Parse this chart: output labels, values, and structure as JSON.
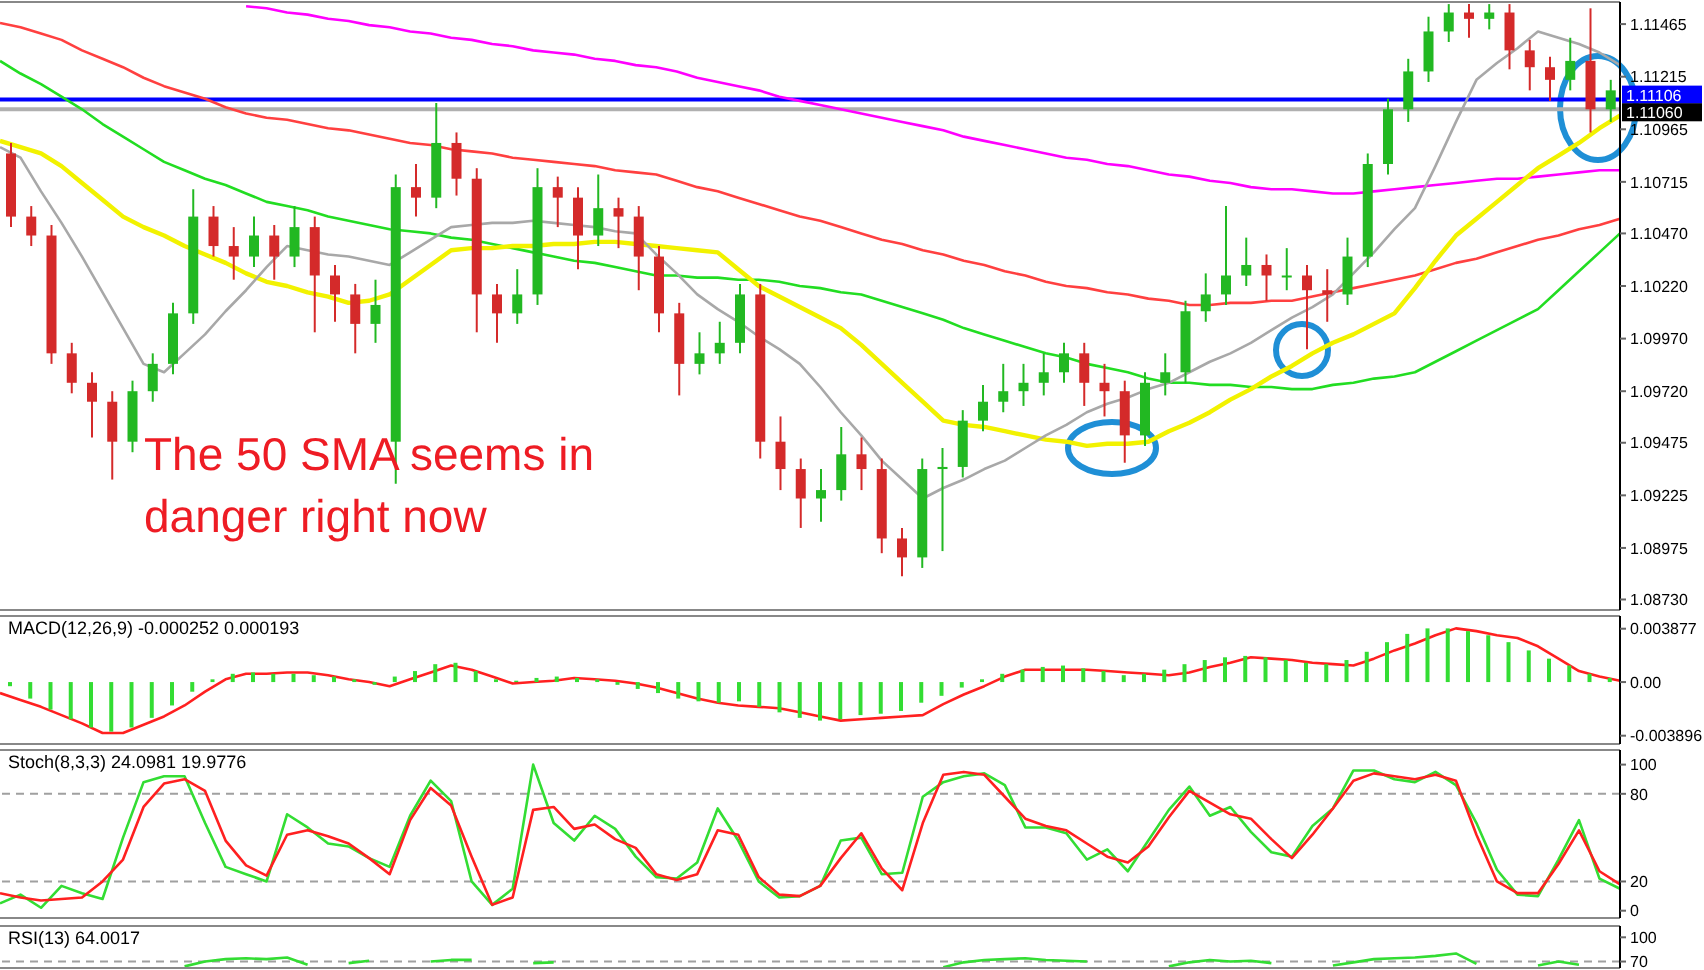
{
  "chart_data": [
    {
      "type": "candlestick",
      "categories": [
        null,
        null,
        null,
        null,
        null,
        null,
        null,
        null,
        null,
        null,
        null,
        null,
        null,
        null,
        null,
        null,
        null,
        null,
        null,
        null,
        null,
        null,
        null,
        null,
        null,
        null,
        null,
        null,
        null,
        null,
        null,
        null,
        null,
        null,
        null,
        null,
        null,
        null,
        null,
        null,
        null,
        null,
        null,
        null,
        null,
        null,
        null,
        null,
        null,
        null,
        null,
        null,
        null,
        null,
        null,
        null,
        null,
        null,
        null,
        null,
        null,
        null,
        null,
        null,
        null,
        null,
        null,
        null,
        null,
        null,
        null,
        null,
        null,
        null,
        null,
        null,
        null,
        null,
        null,
        null
      ],
      "ohlc": [
        [
          1.1085,
          1.109,
          1.105,
          1.1055
        ],
        [
          1.1055,
          1.106,
          1.1041,
          1.1046
        ],
        [
          1.1046,
          1.1051,
          1.0985,
          1.099
        ],
        [
          1.099,
          1.0995,
          1.0971,
          1.0976
        ],
        [
          1.0976,
          1.0981,
          1.095,
          1.0967
        ],
        [
          1.0967,
          1.0972,
          1.093,
          1.0948
        ],
        [
          1.0948,
          1.0977,
          1.0943,
          1.0972
        ],
        [
          1.0972,
          1.099,
          1.0967,
          1.0985
        ],
        [
          1.0985,
          1.1014,
          1.098,
          1.1009
        ],
        [
          1.1009,
          1.1068,
          1.1004,
          1.1055
        ],
        [
          1.1055,
          1.106,
          1.1036,
          1.1041
        ],
        [
          1.1041,
          1.105,
          1.1025,
          1.1036
        ],
        [
          1.1036,
          1.1055,
          1.1031,
          1.1046
        ],
        [
          1.1046,
          1.1051,
          1.1025,
          1.1036
        ],
        [
          1.1036,
          1.106,
          1.1031,
          1.105
        ],
        [
          1.105,
          1.1055,
          1.1,
          1.1027
        ],
        [
          1.1027,
          1.1032,
          1.1005,
          1.1018
        ],
        [
          1.1018,
          1.1023,
          1.099,
          1.1004
        ],
        [
          1.1004,
          1.1025,
          1.0995,
          1.1013
        ],
        [
          1.0948,
          1.1075,
          1.0928,
          1.1069
        ],
        [
          1.1069,
          1.108,
          1.1055,
          1.1064
        ],
        [
          1.1064,
          1.1109,
          1.1059,
          1.109
        ],
        [
          1.109,
          1.1095,
          1.1065,
          1.1073
        ],
        [
          1.1073,
          1.1078,
          1.1,
          1.1018
        ],
        [
          1.1018,
          1.1023,
          1.0995,
          1.1009
        ],
        [
          1.1009,
          1.103,
          1.1004,
          1.1018
        ],
        [
          1.1018,
          1.1078,
          1.1013,
          1.1069
        ],
        [
          1.1069,
          1.1074,
          1.105,
          1.1064
        ],
        [
          1.1064,
          1.1069,
          1.103,
          1.1046
        ],
        [
          1.1046,
          1.1075,
          1.1041,
          1.1059
        ],
        [
          1.1059,
          1.1064,
          1.104,
          1.1055
        ],
        [
          1.1055,
          1.106,
          1.102,
          1.1036
        ],
        [
          1.1036,
          1.1041,
          1.1,
          1.1009
        ],
        [
          1.1009,
          1.1014,
          1.097,
          1.0985
        ],
        [
          1.0985,
          1.1,
          1.098,
          1.099
        ],
        [
          1.099,
          1.1005,
          1.0985,
          1.0995
        ],
        [
          1.0995,
          1.1023,
          1.099,
          1.1018
        ],
        [
          1.1018,
          1.1023,
          1.094,
          1.0948
        ],
        [
          1.0948,
          1.096,
          1.0925,
          1.0935
        ],
        [
          1.0935,
          1.094,
          1.0907,
          1.0921
        ],
        [
          1.0921,
          1.0935,
          1.091,
          1.0925
        ],
        [
          1.0925,
          1.0955,
          1.092,
          1.0942
        ],
        [
          1.0942,
          1.095,
          1.0925,
          1.0935
        ],
        [
          1.0935,
          1.094,
          1.0895,
          1.0902
        ],
        [
          1.0902,
          1.0907,
          1.0884,
          1.0893
        ],
        [
          1.0893,
          1.094,
          1.0888,
          1.0935
        ],
        [
          1.0935,
          1.0945,
          1.0896,
          1.0936
        ],
        [
          1.0936,
          1.0963,
          1.0931,
          1.0958
        ],
        [
          1.0958,
          1.0975,
          1.0953,
          1.0967
        ],
        [
          1.0967,
          1.0985,
          1.0962,
          1.0972
        ],
        [
          1.0972,
          1.0985,
          1.0965,
          1.0976
        ],
        [
          1.0976,
          1.099,
          1.097,
          1.0981
        ],
        [
          1.0981,
          1.0995,
          1.0976,
          1.099
        ],
        [
          1.099,
          1.0995,
          1.0965,
          1.0976
        ],
        [
          1.0976,
          1.0985,
          1.096,
          1.0972
        ],
        [
          1.0972,
          1.0977,
          1.0938,
          1.0951
        ],
        [
          1.0951,
          1.0981,
          1.0946,
          1.0976
        ],
        [
          1.0976,
          1.099,
          1.097,
          1.0981
        ],
        [
          1.0981,
          1.1015,
          1.0976,
          1.101
        ],
        [
          1.101,
          1.1028,
          1.1005,
          1.1018
        ],
        [
          1.1018,
          1.106,
          1.1013,
          1.1027
        ],
        [
          1.1027,
          1.1045,
          1.1022,
          1.1032
        ],
        [
          1.1032,
          1.1037,
          1.1015,
          1.1027
        ],
        [
          1.1027,
          1.104,
          1.102,
          1.1027
        ],
        [
          1.1027,
          1.1032,
          1.0992,
          1.102
        ],
        [
          1.102,
          1.103,
          1.1005,
          1.1018
        ],
        [
          1.1018,
          1.1045,
          1.1013,
          1.1036
        ],
        [
          1.1036,
          1.1085,
          1.1031,
          1.108
        ],
        [
          1.108,
          1.1111,
          1.1075,
          1.1106
        ],
        [
          1.1106,
          1.113,
          1.11,
          1.1124
        ],
        [
          1.1124,
          1.115,
          1.1119,
          1.1143
        ],
        [
          1.1143,
          1.1156,
          1.1138,
          1.1152
        ],
        [
          1.1152,
          1.1156,
          1.114,
          1.1149
        ],
        [
          1.1149,
          1.1156,
          1.1144,
          1.1152
        ],
        [
          1.1152,
          1.1156,
          1.1125,
          1.1134
        ],
        [
          1.1134,
          1.1139,
          1.1115,
          1.1126
        ],
        [
          1.1126,
          1.1131,
          1.111,
          1.112
        ],
        [
          1.112,
          1.114,
          1.1115,
          1.1129
        ],
        [
          1.1129,
          1.1154,
          1.1095,
          1.1106
        ],
        [
          1.1106,
          1.112,
          1.11,
          1.1115
        ]
      ],
      "colors": [
        "#d42a2a",
        "#d42a2a",
        "#d42a2a",
        "#d42a2a",
        "#d42a2a",
        "#d42a2a",
        "#22b822",
        "#22b822",
        "#22b822",
        "#22b822",
        "#d42a2a",
        "#d42a2a",
        "#22b822",
        "#d42a2a",
        "#22b822",
        "#d42a2a",
        "#d42a2a",
        "#d42a2a",
        "#22b822",
        "#22b822",
        "#d42a2a",
        "#22b822",
        "#d42a2a",
        "#d42a2a",
        "#d42a2a",
        "#22b822",
        "#22b822",
        "#d42a2a",
        "#d42a2a",
        "#22b822",
        "#d42a2a",
        "#d42a2a",
        "#d42a2a",
        "#d42a2a",
        "#22b822",
        "#22b822",
        "#22b822",
        "#d42a2a",
        "#d42a2a",
        "#d42a2a",
        "#22b822",
        "#22b822",
        "#d42a2a",
        "#d42a2a",
        "#d42a2a",
        "#22b822",
        "#22b822",
        "#22b822",
        "#22b822",
        "#22b822",
        "#22b822",
        "#22b822",
        "#22b822",
        "#d42a2a",
        "#d42a2a",
        "#d42a2a",
        "#22b822",
        "#22b822",
        "#22b822",
        "#22b822",
        "#22b822",
        "#22b822",
        "#d42a2a",
        "#22b822",
        "#d42a2a",
        "#d42a2a",
        "#22b822",
        "#22b822",
        "#22b822",
        "#22b822",
        "#22b822",
        "#22b822",
        "#d42a2a",
        "#22b822",
        "#d42a2a",
        "#d42a2a",
        "#d42a2a",
        "#22b822",
        "#d42a2a",
        "#22b822"
      ],
      "ylim": [
        1.0868,
        1.1157
      ],
      "yticks": [
        1.11465,
        1.11215,
        1.10965,
        1.10715,
        {
          "value": 1.1047,
          "label": "1.10470"
        },
        {
          "value": 1.1022,
          "label": "1.10220"
        },
        {
          "value": 1.0997,
          "label": "1.09970"
        },
        {
          "value": 1.0972,
          "label": "1.09720"
        },
        1.09475,
        1.09225,
        1.08975,
        {
          "value": 1.0873,
          "label": "1.08730"
        }
      ],
      "annotations": [
        "The 50 SMA seems in danger right now"
      ],
      "tick_labels": "y"
    },
    {
      "type": "line",
      "categories": [
        null,
        null,
        null,
        null,
        null,
        null,
        null,
        null,
        null,
        null,
        null,
        null,
        null,
        null,
        null,
        null,
        null,
        null,
        null,
        null,
        null,
        null,
        null,
        null,
        null,
        null,
        null,
        null,
        null,
        null,
        null,
        null,
        null,
        null,
        null,
        null,
        null,
        null,
        null,
        null,
        null,
        null,
        null,
        null,
        null,
        null,
        null,
        null,
        null,
        null,
        null,
        null,
        null,
        null,
        null,
        null,
        null,
        null,
        null,
        null,
        null,
        null,
        null,
        null,
        null,
        null,
        null,
        null,
        null,
        null,
        null,
        null,
        null,
        null,
        null,
        null,
        null,
        null,
        null,
        null
      ],
      "series": [
        {
          "color": "#ff00ff",
          "values": [
            null,
            null,
            null,
            null,
            null,
            null,
            null,
            null,
            null,
            null,
            null,
            null,
            1.1155,
            1.1154,
            1.1152,
            1.1151,
            1.1149,
            1.1148,
            1.1146,
            1.1145,
            1.1143,
            1.1142,
            1.114,
            1.1139,
            1.1137,
            1.1136,
            1.1134,
            1.1133,
            1.1132,
            1.113,
            1.1129,
            1.1127,
            1.1126,
            1.1124,
            1.1121,
            1.1119,
            1.1117,
            1.1115,
            1.1112,
            1.111,
            1.1108,
            1.1106,
            1.1104,
            1.1102,
            1.11,
            1.1098,
            1.1096,
            1.1093,
            1.1091,
            1.1089,
            1.1087,
            1.1085,
            1.1083,
            1.1082,
            1.108,
            1.1079,
            1.1077,
            1.1075,
            1.1074,
            1.1072,
            1.1071,
            1.1069,
            1.1068,
            1.1068,
            1.1067,
            1.1066,
            1.1066,
            1.1067,
            1.1068,
            1.1069,
            1.107,
            1.1071,
            1.1072,
            1.1073,
            1.1073,
            1.1074,
            1.1075,
            1.1076,
            1.1077,
            1.1077
          ]
        },
        {
          "color": "#ff4040",
          "values": [
            1.1147,
            1.1145,
            1.1142,
            1.1139,
            1.1134,
            1.113,
            1.1126,
            1.1121,
            1.1117,
            1.1114,
            1.1111,
            1.1107,
            1.1104,
            1.1102,
            1.1101,
            1.1099,
            1.1097,
            1.1096,
            1.1094,
            1.1092,
            1.109,
            1.1089,
            1.1087,
            1.1086,
            1.1085,
            1.1083,
            1.1082,
            1.1081,
            1.108,
            1.1079,
            1.1077,
            1.1076,
            1.1075,
            1.1072,
            1.1069,
            1.1067,
            1.1064,
            1.1061,
            1.1058,
            1.1055,
            1.1053,
            1.105,
            1.1047,
            1.1044,
            1.1042,
            1.1039,
            1.1037,
            1.1034,
            1.1032,
            1.1029,
            1.1027,
            1.1024,
            1.1022,
            1.1021,
            1.1019,
            1.1018,
            1.1016,
            1.1015,
            1.1013,
            1.1013,
            1.1014,
            1.1014,
            1.1015,
            1.1015,
            1.1017,
            1.1019,
            1.1021,
            1.1023,
            1.1025,
            1.1027,
            1.103,
            1.1033,
            1.1035,
            1.1038,
            1.1041,
            1.1044,
            1.1046,
            1.1049,
            1.1051,
            1.1054
          ]
        },
        {
          "color": "#22dd22",
          "values": [
            1.1129,
            1.1123,
            1.1118,
            1.1112,
            1.1106,
            1.1099,
            1.1093,
            1.1087,
            1.1081,
            1.1077,
            1.1073,
            1.107,
            1.1066,
            1.1062,
            1.106,
            1.1058,
            1.1055,
            1.1053,
            1.1051,
            1.1049,
            1.1048,
            1.1047,
            1.1045,
            1.1044,
            1.1042,
            1.104,
            1.1038,
            1.1036,
            1.1034,
            1.1033,
            1.1031,
            1.1029,
            1.1027,
            1.1027,
            1.1026,
            1.1026,
            1.1025,
            1.1025,
            1.1024,
            1.1022,
            1.1021,
            1.1019,
            1.1018,
            1.1015,
            1.1012,
            1.1009,
            1.1006,
            1.1002,
            1.0999,
            1.0996,
            1.0993,
            1.099,
            1.0988,
            1.0985,
            1.0983,
            1.0981,
            1.0978,
            1.0976,
            1.0976,
            1.0975,
            1.0975,
            1.0974,
            1.0974,
            1.0973,
            1.0973,
            1.0975,
            1.0976,
            1.0978,
            1.0979,
            1.0981,
            1.0986,
            1.0991,
            1.0996,
            1.1001,
            1.1006,
            1.1011,
            1.102,
            1.1029,
            1.1038,
            1.1047
          ]
        },
        {
          "color": "#f2f200",
          "values": [
            1.1091,
            1.1088,
            1.1085,
            1.1079,
            1.1071,
            1.1063,
            1.1055,
            1.105,
            1.1046,
            1.1041,
            1.1037,
            1.1033,
            1.1028,
            1.1024,
            1.1022,
            1.1019,
            1.1017,
            1.1014,
            1.1015,
            1.1018,
            1.1025,
            1.1032,
            1.1039,
            1.104,
            1.104,
            1.1041,
            1.1041,
            1.1042,
            1.1042,
            1.1043,
            1.1043,
            1.1042,
            1.1041,
            1.104,
            1.1039,
            1.1038,
            1.103,
            1.1022,
            1.1017,
            1.1012,
            1.1007,
            1.1002,
            1.0994,
            1.0985,
            1.0976,
            1.0967,
            1.0958,
            1.0956,
            1.0955,
            1.0953,
            1.0951,
            1.0949,
            1.0948,
            1.0946,
            1.0947,
            1.0947,
            1.0948,
            1.0953,
            1.0957,
            1.0962,
            1.0968,
            1.0973,
            1.0979,
            1.0984,
            1.099,
            1.0995,
            1.0999,
            1.1004,
            1.1009,
            1.1021,
            1.1034,
            1.1046,
            1.1054,
            1.1062,
            1.107,
            1.1078,
            1.1084,
            1.109,
            1.1097,
            1.1103
          ]
        },
        {
          "color": "#a8a8a8",
          "values": [
            1.1088,
            1.1083,
            1.1067,
            1.1052,
            1.1036,
            1.1019,
            1.1002,
            1.0985,
            1.0981,
            1.099,
            1.0999,
            1.101,
            1.102,
            1.1031,
            1.1041,
            1.1039,
            1.1037,
            1.1036,
            1.1034,
            1.1032,
            1.1038,
            1.1044,
            1.105,
            1.1051,
            1.1052,
            1.1052,
            1.1053,
            1.1052,
            1.1051,
            1.105,
            1.1048,
            1.1047,
            1.1037,
            1.1028,
            1.1018,
            1.1011,
            1.1005,
            1.0998,
            1.0992,
            1.0985,
            1.0974,
            1.0962,
            1.0951,
            1.0939,
            1.093,
            1.0921,
            1.0926,
            1.093,
            1.0935,
            1.0939,
            1.0945,
            1.0951,
            1.0956,
            1.0962,
            1.0966,
            1.0969,
            1.0973,
            1.0976,
            1.0981,
            1.0986,
            1.099,
            1.0995,
            1.1001,
            1.1007,
            1.1012,
            1.1018,
            1.1028,
            1.1038,
            1.1049,
            1.1059,
            1.1079,
            1.11,
            1.112,
            1.1128,
            1.1135,
            1.1143,
            1.114,
            1.1137,
            1.1133,
            1.1127
          ]
        }
      ],
      "ylim": [
        1.0868,
        1.1157
      ],
      "ref_lines": [
        {
          "axis": "y",
          "value": 1.11106,
          "label": "1.11106",
          "color": "#0000ff"
        },
        {
          "axis": "y",
          "value": 1.1106,
          "label": "1.11060",
          "color": "#b0b0b0"
        }
      ],
      "tick_labels": false
    },
    {
      "type": "bar",
      "title": "MACD(12,26,9) -0.000252 0.000193",
      "categories": [
        null,
        null,
        null,
        null,
        null,
        null,
        null,
        null,
        null,
        null,
        null,
        null,
        null,
        null,
        null,
        null,
        null,
        null,
        null,
        null,
        null,
        null,
        null,
        null,
        null,
        null,
        null,
        null,
        null,
        null,
        null,
        null,
        null,
        null,
        null,
        null,
        null,
        null,
        null,
        null,
        null,
        null,
        null,
        null,
        null,
        null,
        null,
        null,
        null,
        null,
        null,
        null,
        null,
        null,
        null,
        null,
        null,
        null,
        null,
        null,
        null,
        null,
        null,
        null,
        null,
        null,
        null,
        null,
        null,
        null,
        null,
        null,
        null,
        null,
        null,
        null,
        null,
        null,
        null,
        null
      ],
      "series": [
        {
          "color": "#33dd33",
          "values": [
            -0.0003,
            -0.0012,
            -0.002,
            -0.0027,
            -0.0033,
            -0.0036,
            -0.0033,
            -0.0026,
            -0.0017,
            -0.0007,
            0.0002,
            0.0006,
            0.0007,
            0.0006,
            0.0006,
            0.0005,
            0.0004,
            0.0002,
            -0.0002,
            0.0004,
            0.0008,
            0.0013,
            0.0014,
            0.0008,
            0.0002,
            0.0001,
            0.0003,
            0.0004,
            0.0003,
            0.0002,
            -0.0002,
            -0.0005,
            -0.0008,
            -0.0012,
            -0.0014,
            -0.0015,
            -0.0014,
            -0.0018,
            -0.0022,
            -0.0026,
            -0.0028,
            -0.0027,
            -0.0024,
            -0.0023,
            -0.0021,
            -0.0015,
            -0.001,
            -0.0004,
            0.0002,
            0.0006,
            0.0009,
            0.0011,
            0.0012,
            0.001,
            0.0008,
            0.0005,
            0.0006,
            0.0009,
            0.0013,
            0.0016,
            0.0018,
            0.0019,
            0.0018,
            0.0016,
            0.0014,
            0.0013,
            0.0016,
            0.0022,
            0.0029,
            0.0035,
            0.0039,
            0.0039,
            0.0037,
            0.0034,
            0.0029,
            0.0023,
            0.0017,
            0.0012,
            0.0006,
            0.0003
          ]
        }
      ],
      "ylim": [
        -0.0045,
        0.0048
      ],
      "yticks": [
        0.003877,
        {
          "value": 0,
          "label": "0.00"
        },
        -0.003896
      ],
      "tick_labels": "y"
    },
    {
      "type": "line",
      "categories": [
        null,
        null,
        null,
        null,
        null,
        null,
        null,
        null,
        null,
        null,
        null,
        null,
        null,
        null,
        null,
        null,
        null,
        null,
        null,
        null,
        null,
        null,
        null,
        null,
        null,
        null,
        null,
        null,
        null,
        null,
        null,
        null,
        null,
        null,
        null,
        null,
        null,
        null,
        null,
        null,
        null,
        null,
        null,
        null,
        null,
        null,
        null,
        null,
        null,
        null,
        null,
        null,
        null,
        null,
        null,
        null,
        null,
        null,
        null,
        null,
        null,
        null,
        null,
        null,
        null,
        null,
        null,
        null,
        null,
        null,
        null,
        null,
        null,
        null,
        null,
        null,
        null,
        null,
        null,
        null
      ],
      "series": [
        {
          "color": "#ff2020",
          "values": [
            -0.0008,
            -0.0013,
            -0.0018,
            -0.0024,
            -0.003,
            -0.0037,
            -0.0037,
            -0.0031,
            -0.0025,
            -0.0017,
            -0.0007,
            0.0002,
            0.0006,
            0.0006,
            0.0007,
            0.0007,
            0.0005,
            0.0002,
            0.0,
            -0.0003,
            0.0002,
            0.0007,
            0.0012,
            0.0009,
            0.0004,
            -0.0001,
            0.0,
            0.0001,
            0.0003,
            0.0002,
            0.0001,
            -0.0001,
            -0.0004,
            -0.0008,
            -0.0012,
            -0.0015,
            -0.0017,
            -0.0018,
            -0.0019,
            -0.0022,
            -0.0025,
            -0.0028,
            -0.0027,
            -0.0026,
            -0.0025,
            -0.0024,
            -0.0016,
            -0.0009,
            -0.0003,
            0.0004,
            0.0009,
            0.0009,
            0.0009,
            0.0009,
            0.0008,
            0.0007,
            0.0006,
            0.0005,
            0.0007,
            0.0011,
            0.0014,
            0.0018,
            0.0017,
            0.0016,
            0.0014,
            0.0013,
            0.0012,
            0.0017,
            0.0023,
            0.0028,
            0.0034,
            0.0039,
            0.0037,
            0.0034,
            0.0032,
            0.0026,
            0.0017,
            0.0008,
            0.0004,
            0.0001
          ]
        }
      ],
      "ylim": [
        -0.0045,
        0.0048
      ],
      "tick_labels": false
    },
    {
      "type": "line",
      "title": "Stoch(8,3,3) 24.0981 19.9776",
      "categories": [
        null,
        null,
        null,
        null,
        null,
        null,
        null,
        null,
        null,
        null,
        null,
        null,
        null,
        null,
        null,
        null,
        null,
        null,
        null,
        null,
        null,
        null,
        null,
        null,
        null,
        null,
        null,
        null,
        null,
        null,
        null,
        null,
        null,
        null,
        null,
        null,
        null,
        null,
        null,
        null,
        null,
        null,
        null,
        null,
        null,
        null,
        null,
        null,
        null,
        null,
        null,
        null,
        null,
        null,
        null,
        null,
        null,
        null,
        null,
        null,
        null,
        null,
        null,
        null,
        null,
        null,
        null,
        null,
        null,
        null,
        null,
        null,
        null,
        null,
        null,
        null,
        null,
        null,
        null,
        null
      ],
      "series": [
        {
          "color": "#33dd33",
          "values": [
            5,
            11,
            2,
            17,
            12,
            8,
            50,
            88,
            92,
            92,
            60,
            30,
            25,
            20,
            66,
            57,
            46,
            44,
            36,
            30,
            65,
            89,
            75,
            20,
            4,
            15,
            100,
            60,
            48,
            65,
            56,
            37,
            23,
            22,
            33,
            70,
            48,
            20,
            9,
            10,
            17,
            48,
            50,
            25,
            26,
            78,
            88,
            92,
            94,
            86,
            57,
            57,
            53,
            35,
            42,
            27,
            48,
            69,
            85,
            65,
            71,
            54,
            40,
            37,
            58,
            70,
            96,
            96,
            90,
            88,
            95,
            86,
            60,
            28,
            11,
            10,
            35,
            62,
            22,
            15
          ]
        },
        {
          "color": "#ff2020",
          "values": [
            12,
            9,
            7,
            8,
            9,
            20,
            35,
            71,
            87,
            90,
            82,
            48,
            31,
            24,
            52,
            55,
            51,
            46,
            36,
            25,
            62,
            84,
            72,
            37,
            4,
            9,
            69,
            71,
            56,
            59,
            49,
            43,
            25,
            21,
            25,
            55,
            52,
            23,
            11,
            10,
            17,
            36,
            53,
            29,
            14,
            60,
            93,
            95,
            93,
            78,
            63,
            58,
            55,
            46,
            37,
            33,
            44,
            64,
            82,
            74,
            66,
            63,
            49,
            36,
            52,
            70,
            89,
            94,
            92,
            90,
            93,
            89,
            52,
            20,
            12,
            12,
            32,
            55,
            27,
            18
          ]
        }
      ],
      "ylim": [
        -5,
        110
      ],
      "yticks": [
        100,
        80,
        20,
        0
      ],
      "tick_labels": "y",
      "ref_lines": [
        {
          "axis": "y",
          "value": 80,
          "color": "#a0a0a0",
          "line_style": "dashed"
        },
        {
          "axis": "y",
          "value": 20,
          "color": "#a0a0a0",
          "line_style": "dashed"
        }
      ]
    },
    {
      "type": "line",
      "title": "RSI(13) 64.0017",
      "categories": [
        null,
        null,
        null,
        null,
        null,
        null,
        null,
        null,
        null,
        null,
        null,
        null,
        null,
        null,
        null,
        null,
        null,
        null,
        null,
        null,
        null,
        null,
        null,
        null,
        null,
        null,
        null,
        null,
        null,
        null,
        null,
        null,
        null,
        null,
        null,
        null,
        null,
        null,
        null,
        null,
        null,
        null,
        null,
        null,
        null,
        null,
        null,
        null,
        null,
        null,
        null,
        null,
        null,
        null,
        null,
        null,
        null,
        null,
        null,
        null,
        null,
        null,
        null,
        null,
        null,
        null,
        null,
        null,
        null,
        null,
        null,
        null,
        null,
        null,
        null,
        null,
        null,
        null,
        null,
        null
      ],
      "series": [
        {
          "color": "#33dd33",
          "values": [
            null,
            null,
            null,
            null,
            null,
            null,
            null,
            null,
            null,
            64,
            70,
            73,
            74,
            73,
            75,
            66,
            null,
            68,
            71,
            null,
            null,
            70,
            72,
            72,
            null,
            null,
            68,
            69,
            null,
            null,
            null,
            null,
            null,
            null,
            null,
            null,
            null,
            null,
            null,
            null,
            null,
            null,
            null,
            null,
            null,
            null,
            63,
            69,
            72,
            73,
            74,
            72,
            71,
            70,
            null,
            null,
            null,
            64,
            69,
            72,
            70,
            71,
            68,
            null,
            null,
            65,
            69,
            73,
            74,
            75,
            77,
            80,
            67,
            null,
            null,
            65,
            70,
            66,
            null,
            null
          ]
        }
      ],
      "ylim": [
        62,
        114
      ],
      "yticks": [
        100,
        70
      ],
      "tick_labels": "y",
      "ref_lines": [
        {
          "axis": "y",
          "value": 70,
          "color": "#a0a0a0",
          "line_style": "dashed"
        }
      ]
    }
  ]
}
